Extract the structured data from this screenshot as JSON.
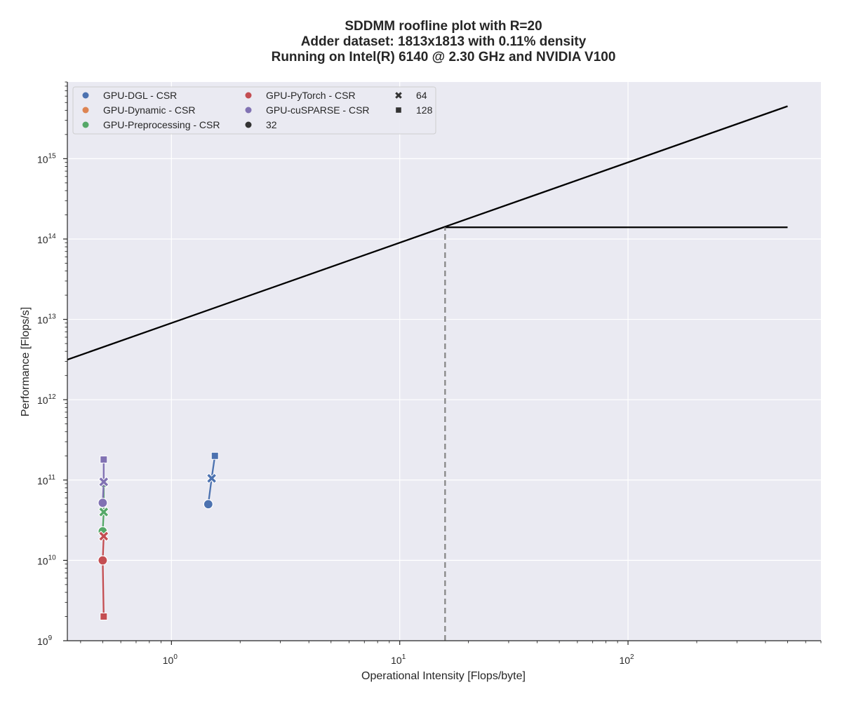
{
  "chart_data": {
    "type": "scatter",
    "title_lines": [
      "SDDMM roofline plot with R=20",
      "Adder dataset: 1813x1813 with 0.11% density",
      "Running on Intel(R) 6140 @ 2.30 GHz and NVIDIA V100"
    ],
    "xlabel": "Operational Intensity [Flops/byte]",
    "ylabel": "Performance [Flops/s]",
    "x_scale": "log",
    "y_scale": "log",
    "xlim": [
      0.35,
      700
    ],
    "ylim": [
      1000000000.0,
      9000000000000000.0
    ],
    "grid": true,
    "legend_position": "top-left",
    "x_ticks": [
      {
        "base": "10",
        "exp": "0",
        "value": 1
      },
      {
        "base": "10",
        "exp": "1",
        "value": 10
      },
      {
        "base": "10",
        "exp": "2",
        "value": 100
      }
    ],
    "y_ticks": [
      {
        "base": "10",
        "exp": "9",
        "value": 1000000000.0
      },
      {
        "base": "10",
        "exp": "10",
        "value": 10000000000.0
      },
      {
        "base": "10",
        "exp": "11",
        "value": 100000000000.0
      },
      {
        "base": "10",
        "exp": "12",
        "value": 1000000000000.0
      },
      {
        "base": "10",
        "exp": "13",
        "value": 10000000000000.0
      },
      {
        "base": "10",
        "exp": "14",
        "value": 100000000000000.0
      },
      {
        "base": "10",
        "exp": "15",
        "value": 1000000000000000.0
      }
    ],
    "roofline": {
      "memory_bound": {
        "x": [
          0.35,
          500
        ],
        "y": [
          3150000000000.0,
          4500000000000000.0
        ]
      },
      "compute_bound": {
        "x": [
          15.8,
          500
        ],
        "y": [
          140000000000000.0,
          140000000000000.0
        ]
      },
      "ridge": {
        "x": 15.8,
        "y_from": 1000000000.0,
        "y_to": 140000000000000.0
      },
      "color": "#000000",
      "ridge_color": "#888888"
    },
    "series": [
      {
        "name": "GPU-DGL - CSR",
        "color": "#4C72B0",
        "points": [
          {
            "x": 1.45,
            "y": 50000000000.0,
            "marker": "circle"
          },
          {
            "x": 1.5,
            "y": 105000000000.0,
            "marker": "x"
          },
          {
            "x": 1.55,
            "y": 200000000000.0,
            "marker": "square"
          }
        ]
      },
      {
        "name": "GPU-Preprocessing - CSR",
        "color": "#55A868",
        "points": [
          {
            "x": 0.5,
            "y": 23000000000.0,
            "marker": "circle"
          },
          {
            "x": 0.505,
            "y": 40000000000.0,
            "marker": "x"
          },
          {
            "x": 0.505,
            "y": 90000000000.0,
            "marker": "square"
          }
        ]
      },
      {
        "name": "GPU-PyTorch - CSR",
        "color": "#C44E52",
        "points": [
          {
            "x": 0.5,
            "y": 10000000000.0,
            "marker": "circle"
          },
          {
            "x": 0.505,
            "y": 20000000000.0,
            "marker": "x"
          },
          {
            "x": 0.505,
            "y": 2000000000.0,
            "marker": "square"
          }
        ]
      },
      {
        "name": "GPU-cuSPARSE - CSR",
        "color": "#8172B3",
        "points": [
          {
            "x": 0.5,
            "y": 52000000000.0,
            "marker": "circle"
          },
          {
            "x": 0.505,
            "y": 95000000000.0,
            "marker": "x"
          },
          {
            "x": 0.505,
            "y": 180000000000.0,
            "marker": "square"
          }
        ]
      }
    ],
    "legend": {
      "entries": [
        {
          "label": "GPU-DGL - CSR",
          "symbol": "circle",
          "color": "#4C72B0"
        },
        {
          "label": "GPU-Dynamic - CSR",
          "symbol": "circle",
          "color": "#DD8452"
        },
        {
          "label": "GPU-Preprocessing - CSR",
          "symbol": "circle",
          "color": "#55A868"
        },
        {
          "label": "GPU-PyTorch - CSR",
          "symbol": "circle",
          "color": "#C44E52"
        },
        {
          "label": "GPU-cuSPARSE - CSR",
          "symbol": "circle",
          "color": "#8172B3"
        },
        {
          "label": "32",
          "symbol": "circle",
          "color": "#333333"
        },
        {
          "label": "64",
          "symbol": "x",
          "color": "#333333"
        },
        {
          "label": "128",
          "symbol": "square",
          "color": "#333333"
        }
      ]
    },
    "colors": {
      "plot_background": "#EAEAF2",
      "grid": "#FFFFFF",
      "axis": "#262626"
    }
  }
}
